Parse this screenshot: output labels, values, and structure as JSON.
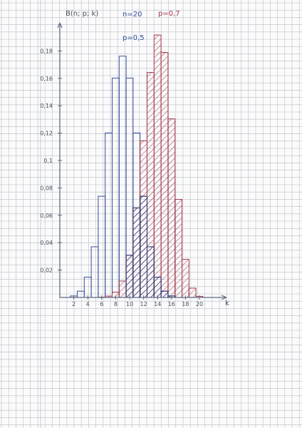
{
  "chart_data": {
    "type": "bar",
    "title": "",
    "xlabel": "k",
    "ylabel": "B(n; p; k)",
    "x_ticks": [
      "2",
      "4",
      "6",
      "8",
      "10",
      "12",
      "14",
      "16",
      "18",
      "20"
    ],
    "y_ticks": [
      "0,02",
      "0,04",
      "0,06",
      "0,08",
      "0,1",
      "0,12",
      "0,14",
      "0,16",
      "0,18"
    ],
    "annotations": [
      "n=20",
      "p=0,5",
      "p=0,7"
    ],
    "k": [
      0,
      1,
      2,
      3,
      4,
      5,
      6,
      7,
      8,
      9,
      10,
      11,
      12,
      13,
      14,
      15,
      16,
      17,
      18,
      19,
      20
    ],
    "xlim": [
      0,
      20
    ],
    "ylim": [
      0,
      0.19
    ],
    "grid": true,
    "series": [
      {
        "name": "p=0,5",
        "color": "#3a4f9e",
        "hatch": false,
        "values": [
          0,
          0,
          0.0011,
          0.0046,
          0.0148,
          0.037,
          0.0739,
          0.1201,
          0.1602,
          0.1762,
          0.1602,
          0.1201,
          0.0739,
          0.037,
          0.0148,
          0.0046,
          0.0011,
          0,
          0,
          0,
          0
        ]
      },
      {
        "name": "p=0,7",
        "color": "#a83a4c",
        "hatch": true,
        "values": [
          0,
          0,
          0,
          0,
          0,
          0,
          0.0002,
          0.001,
          0.0039,
          0.012,
          0.0308,
          0.0654,
          0.1144,
          0.1643,
          0.1916,
          0.1789,
          0.1304,
          0.0716,
          0.0278,
          0.0068,
          0.0008
        ]
      }
    ],
    "colors": {
      "grid": "#b9bec7",
      "axis": "#5e6a82",
      "paper": "#fbfbfb",
      "overlap_hatch": "#2c2f6e"
    }
  }
}
